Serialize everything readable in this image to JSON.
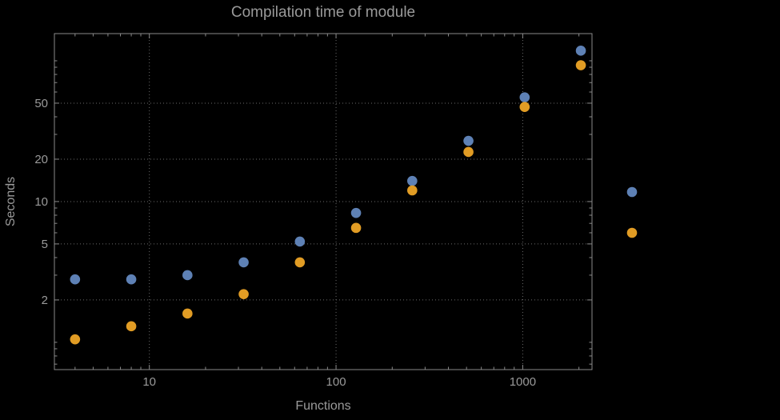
{
  "colors": {
    "background": "#000000",
    "frame": "#8a8a8a",
    "grid": "#6a6a6a",
    "text": "#9a9a9a",
    "series_blue": "#5e81b5",
    "series_orange": "#e19c24"
  },
  "chart_data": {
    "type": "scatter",
    "title": "Compilation time of module",
    "xlabel": "Functions",
    "ylabel": "Seconds",
    "x_scale": "log",
    "y_scale": "log",
    "xlim": [
      3.1,
      2350
    ],
    "ylim": [
      0.64,
      156
    ],
    "x_ticks": [
      10,
      100,
      1000
    ],
    "y_ticks": [
      2,
      5,
      10,
      20,
      50
    ],
    "grid": true,
    "x": [
      4,
      8,
      16,
      32,
      64,
      128,
      256,
      512,
      1024,
      2048
    ],
    "series": [
      {
        "name": "blue",
        "color": "#5e81b5",
        "values": [
          2.8,
          2.8,
          3.0,
          3.7,
          5.2,
          8.3,
          14,
          27,
          55,
          118
        ]
      },
      {
        "name": "orange",
        "color": "#e19c24",
        "values": [
          1.05,
          1.3,
          1.6,
          2.2,
          3.7,
          6.5,
          12,
          22.5,
          47,
          93
        ]
      }
    ],
    "legend": {
      "position": "right",
      "markers": [
        {
          "color": "#5e81b5"
        },
        {
          "color": "#e19c24"
        }
      ]
    }
  }
}
